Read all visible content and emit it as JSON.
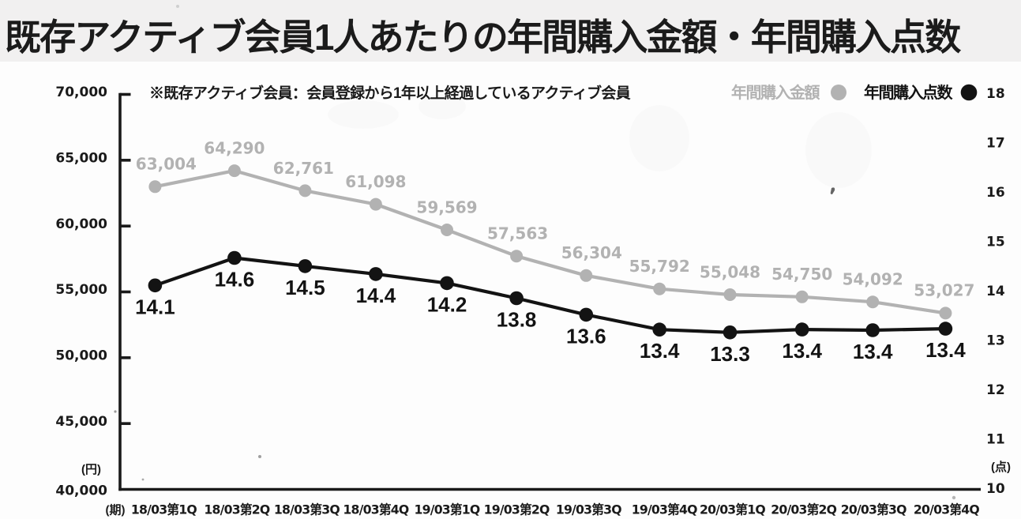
{
  "title": "既存アクティブ会員1人あたりの年間購入金額・年間購入点数",
  "note": "※既存アクティブ会員：会員登録から1年以上経過しているアクティブ会員",
  "legend": {
    "amount_label": "年間購入金額",
    "points_label": "年間購入点数"
  },
  "colors": {
    "amount_gray": "#b2b2b2",
    "points_black": "#131313",
    "axis": "#1a1a1a",
    "label_dark": "#1a1a1a",
    "title_band": "#f1f0f0"
  },
  "axes": {
    "left_unit": "(円)",
    "right_unit": "(点)",
    "x_unit": "(期)",
    "left_tick_labels": [
      "70,000",
      "65,000",
      "60,000",
      "55,000",
      "50,000",
      "45,000",
      "40,000"
    ],
    "right_tick_labels": [
      "18",
      "17",
      "16",
      "15",
      "14",
      "13",
      "12",
      "11",
      "10"
    ]
  },
  "chart_data": {
    "type": "line",
    "title": "既存アクティブ会員1人あたりの年間購入金額・年間購入点数",
    "categories": [
      "18/03第1Q",
      "18/03第2Q",
      "18/03第3Q",
      "18/03第4Q",
      "19/03第1Q",
      "19/03第2Q",
      "19/03第3Q",
      "19/03第4Q",
      "20/03第1Q",
      "20/03第2Q",
      "20/03第3Q",
      "20/03第4Q"
    ],
    "series": [
      {
        "name": "年間購入金額",
        "axis": "left",
        "values": [
          63004,
          64290,
          62761,
          61098,
          59569,
          57563,
          56304,
          55792,
          55048,
          54750,
          54092,
          53027
        ],
        "labels": [
          "63,004",
          "64,290",
          "62,761",
          "61,098",
          "59,569",
          "57,563",
          "56,304",
          "55,792",
          "55,048",
          "54,750",
          "54,092",
          "53,027"
        ]
      },
      {
        "name": "年間購入点数",
        "axis": "right",
        "values": [
          14.1,
          14.6,
          14.5,
          14.4,
          14.2,
          13.8,
          13.6,
          13.4,
          13.3,
          13.4,
          13.4,
          13.4
        ],
        "labels": [
          "14.1",
          "14.6",
          "14.5",
          "14.4",
          "14.2",
          "13.8",
          "13.6",
          "13.4",
          "13.3",
          "13.4",
          "13.4",
          "13.4"
        ]
      }
    ],
    "y_left": {
      "min": 40000,
      "max": 70000,
      "step": 5000,
      "unit": "円"
    },
    "y_right": {
      "min": 10,
      "max": 18,
      "step": 1,
      "unit": "点"
    },
    "xlabel": "期",
    "legend_position": "top-right",
    "grid": false
  }
}
